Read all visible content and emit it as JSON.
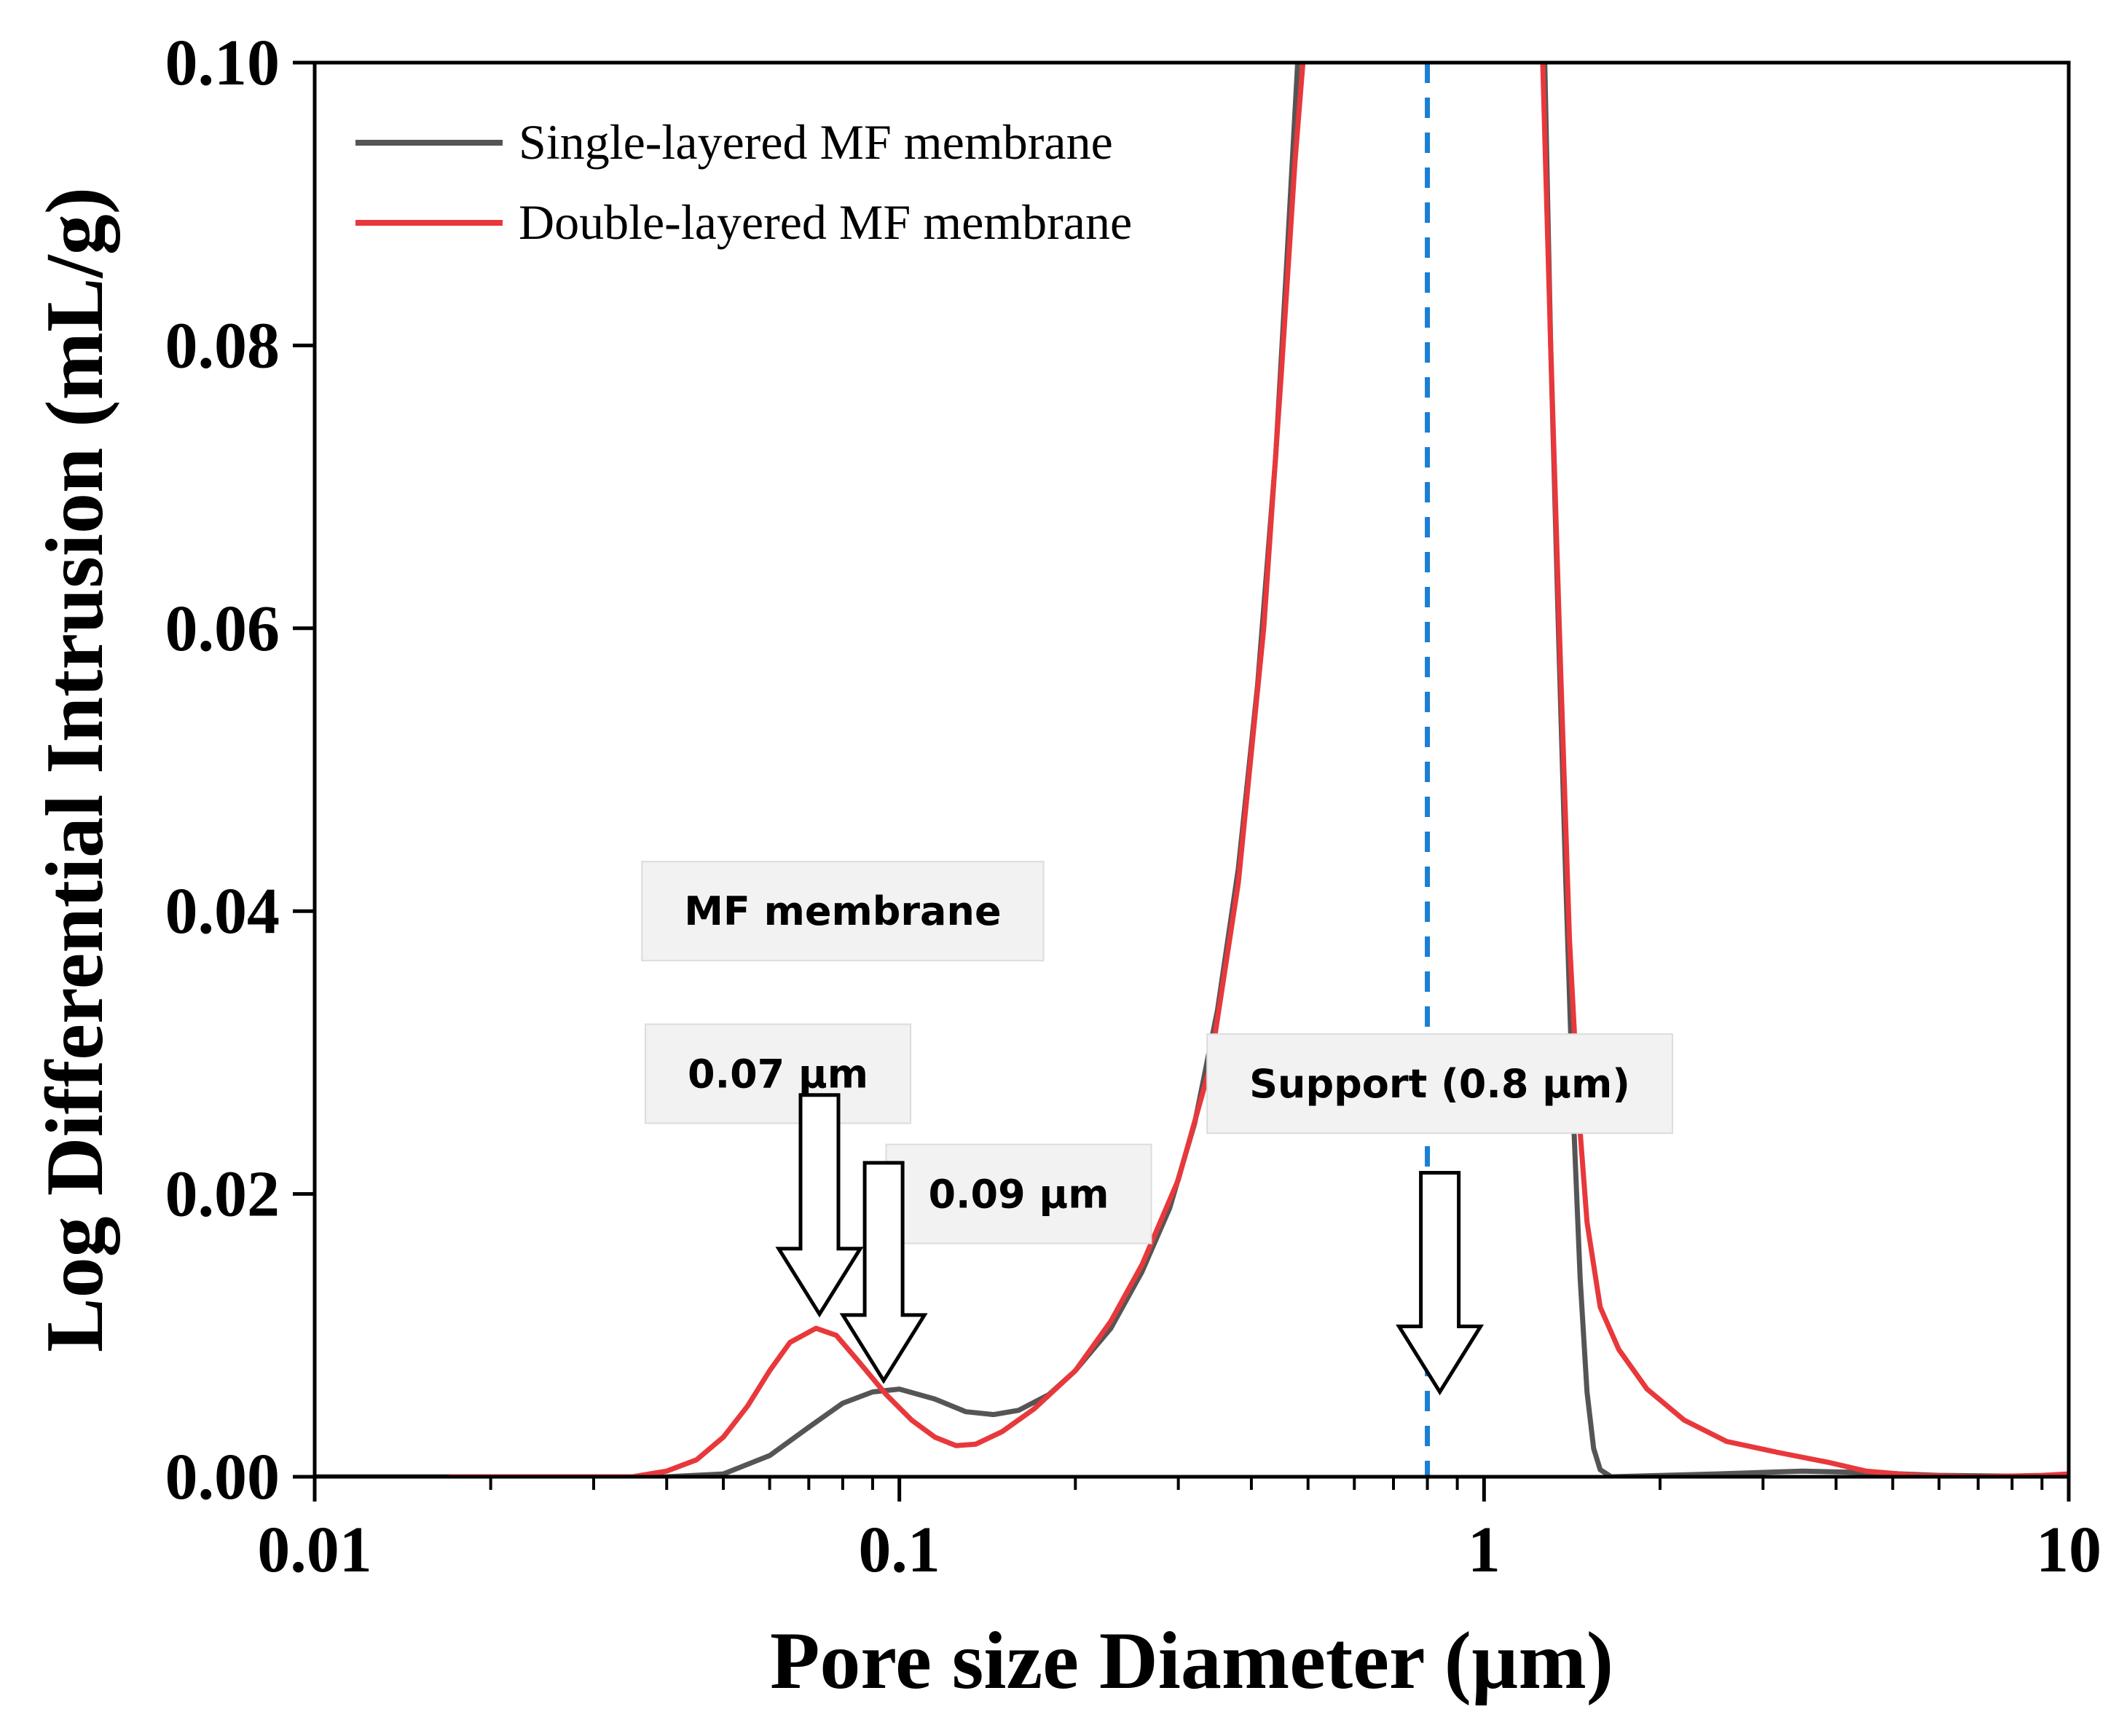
{
  "chart_data": {
    "type": "line",
    "xlabel": "Pore size Diameter (µm)",
    "ylabel": "Log Differential Intrusion (mL/g)",
    "xscale": "log",
    "xlim": [
      0.01,
      10
    ],
    "ylim": [
      0,
      0.1
    ],
    "xticks": [
      {
        "value": 0.01,
        "label": "0.01"
      },
      {
        "value": 0.1,
        "label": "0.1"
      },
      {
        "value": 1,
        "label": "1"
      },
      {
        "value": 10,
        "label": "10"
      }
    ],
    "yticks": [
      {
        "value": 0.0,
        "label": "0.00"
      },
      {
        "value": 0.02,
        "label": "0.02"
      },
      {
        "value": 0.04,
        "label": "0.04"
      },
      {
        "value": 0.06,
        "label": "0.06"
      },
      {
        "value": 0.08,
        "label": "0.08"
      },
      {
        "value": 0.1,
        "label": "0.10"
      }
    ],
    "legend_position": "top-left",
    "series": [
      {
        "name": "Single-layered MF membrane",
        "color": "#555555",
        "points": [
          [
            0.01,
            0.0
          ],
          [
            0.04,
            0.0
          ],
          [
            0.05,
            0.0002
          ],
          [
            0.06,
            0.0015
          ],
          [
            0.07,
            0.0035
          ],
          [
            0.08,
            0.0052
          ],
          [
            0.09,
            0.006
          ],
          [
            0.1,
            0.0062
          ],
          [
            0.115,
            0.0055
          ],
          [
            0.13,
            0.0046
          ],
          [
            0.145,
            0.0044
          ],
          [
            0.16,
            0.0047
          ],
          [
            0.18,
            0.0058
          ],
          [
            0.2,
            0.0075
          ],
          [
            0.23,
            0.0105
          ],
          [
            0.26,
            0.0145
          ],
          [
            0.29,
            0.019
          ],
          [
            0.32,
            0.025
          ],
          [
            0.35,
            0.033
          ],
          [
            0.38,
            0.043
          ],
          [
            0.41,
            0.056
          ],
          [
            0.44,
            0.072
          ],
          [
            0.46,
            0.086
          ],
          [
            0.48,
            0.1
          ],
          null,
          [
            1.27,
            0.1
          ],
          [
            1.3,
            0.08
          ],
          [
            1.34,
            0.06
          ],
          [
            1.38,
            0.042
          ],
          [
            1.42,
            0.026
          ],
          [
            1.46,
            0.014
          ],
          [
            1.5,
            0.006
          ],
          [
            1.54,
            0.002
          ],
          [
            1.58,
            0.0005
          ],
          [
            1.65,
            0.0
          ],
          [
            2.5,
            0.0002
          ],
          [
            3.5,
            0.0004
          ],
          [
            4.5,
            0.0003
          ],
          [
            6.0,
            0.0001
          ],
          [
            10.0,
            0.0
          ]
        ]
      },
      {
        "name": "Double-layered MF membrane",
        "color": "#e8383b",
        "points": [
          [
            0.017,
            0.0
          ],
          [
            0.035,
            0.0
          ],
          [
            0.04,
            0.0004
          ],
          [
            0.045,
            0.0012
          ],
          [
            0.05,
            0.0028
          ],
          [
            0.055,
            0.005
          ],
          [
            0.06,
            0.0075
          ],
          [
            0.065,
            0.0095
          ],
          [
            0.072,
            0.0105
          ],
          [
            0.078,
            0.01
          ],
          [
            0.085,
            0.0082
          ],
          [
            0.095,
            0.0058
          ],
          [
            0.105,
            0.004
          ],
          [
            0.115,
            0.0028
          ],
          [
            0.125,
            0.0022
          ],
          [
            0.135,
            0.0023
          ],
          [
            0.15,
            0.0032
          ],
          [
            0.17,
            0.0048
          ],
          [
            0.2,
            0.0075
          ],
          [
            0.23,
            0.011
          ],
          [
            0.26,
            0.015
          ],
          [
            0.3,
            0.021
          ],
          [
            0.34,
            0.029
          ],
          [
            0.38,
            0.042
          ],
          [
            0.42,
            0.06
          ],
          [
            0.45,
            0.078
          ],
          [
            0.475,
            0.093
          ],
          [
            0.49,
            0.1
          ],
          null,
          [
            1.26,
            0.1
          ],
          [
            1.3,
            0.08
          ],
          [
            1.35,
            0.058
          ],
          [
            1.4,
            0.038
          ],
          [
            1.45,
            0.026
          ],
          [
            1.5,
            0.018
          ],
          [
            1.58,
            0.012
          ],
          [
            1.7,
            0.009
          ],
          [
            1.9,
            0.0062
          ],
          [
            2.2,
            0.004
          ],
          [
            2.6,
            0.0025
          ],
          [
            3.2,
            0.0017
          ],
          [
            3.9,
            0.001
          ],
          [
            4.5,
            0.0004
          ],
          [
            5.5,
            0.0001
          ],
          [
            7.0,
            0.0
          ],
          [
            9.0,
            0.0001
          ],
          [
            10.0,
            0.0002
          ]
        ]
      }
    ],
    "reference_line": {
      "x": 0.8,
      "color": "#1a7fd4",
      "style": "dashed"
    },
    "annotations": [
      {
        "text": "MF membrane",
        "x": 0.08,
        "y": 0.04
      },
      {
        "text": "0.07 µm",
        "x": 0.062,
        "y": 0.0285
      },
      {
        "text": "0.09 µm",
        "x": 0.16,
        "y": 0.02
      },
      {
        "text": "Support (0.8 µm)",
        "x": 0.84,
        "y": 0.0278
      }
    ],
    "arrows": [
      {
        "target": "0.07 µm",
        "x": 0.073,
        "y_top": 0.027,
        "y_tip": 0.0115
      },
      {
        "target": "0.09 µm",
        "x": 0.094,
        "y_top": 0.0222,
        "y_tip": 0.0068
      },
      {
        "target": "Support (0.8 µm)",
        "x": 0.84,
        "y_top": 0.0215,
        "y_tip": 0.006
      }
    ]
  }
}
